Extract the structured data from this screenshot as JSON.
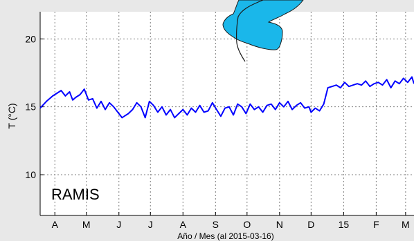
{
  "chart_data": {
    "type": "line",
    "ylabel": "T  (°C)",
    "xlabel": "Año / Mes  (al  2015-03-16)",
    "ylim": [
      7,
      22
    ],
    "y_ticks": [
      10,
      15,
      20
    ],
    "x_ticks": [
      "A",
      "M",
      "J",
      "J",
      "A",
      "S",
      "O",
      "N",
      "D",
      "15",
      "F",
      "M"
    ],
    "x_tick_days": [
      14,
      44,
      75,
      105,
      136,
      167,
      197,
      228,
      258,
      289,
      320,
      348
    ],
    "xlim_days": [
      0,
      356
    ],
    "grid": true,
    "annotation": "RAMIS",
    "series": [
      {
        "days": [
          0,
          6,
          12,
          16,
          20,
          24,
          28,
          31,
          34,
          38,
          42,
          46,
          50,
          54,
          58,
          62,
          66,
          70,
          74,
          78,
          80,
          84,
          88,
          92,
          96,
          100,
          104,
          108,
          112,
          116,
          120,
          124,
          128,
          132,
          136,
          140,
          144,
          148,
          152,
          156,
          160,
          164,
          168,
          172,
          176,
          180,
          184,
          188,
          192,
          196,
          200,
          204,
          208,
          212,
          216,
          220,
          224,
          228,
          232,
          236,
          240,
          244,
          248,
          252,
          256,
          258,
          262,
          266,
          270,
          274,
          278,
          282,
          286,
          290,
          294,
          298,
          302,
          306,
          310,
          314,
          318,
          322,
          326,
          330,
          334,
          338,
          342,
          346,
          350,
          354,
          356
        ],
        "values": [
          14.9,
          15.4,
          15.8,
          16.0,
          16.2,
          15.8,
          16.1,
          15.5,
          15.7,
          15.9,
          16.3,
          15.5,
          15.6,
          14.9,
          15.4,
          14.8,
          15.3,
          15.0,
          14.6,
          14.2,
          14.3,
          14.5,
          14.8,
          15.3,
          15.0,
          14.2,
          15.4,
          15.1,
          14.6,
          15.0,
          14.4,
          14.8,
          14.2,
          14.5,
          14.8,
          14.4,
          14.9,
          14.6,
          15.1,
          14.6,
          14.7,
          15.3,
          14.8,
          14.3,
          14.9,
          15.0,
          14.4,
          15.2,
          15.0,
          14.5,
          15.2,
          14.8,
          15.0,
          14.6,
          15.1,
          15.2,
          14.8,
          15.3,
          15.0,
          15.4,
          14.8,
          15.1,
          15.3,
          14.9,
          15.0,
          14.6,
          14.9,
          14.7,
          15.2,
          16.4,
          16.5,
          16.6,
          16.4,
          16.8,
          16.5,
          16.6,
          16.7,
          16.6,
          16.9,
          16.5,
          16.7,
          16.8,
          16.6,
          17.0,
          16.4,
          16.9,
          16.7,
          17.1,
          16.8,
          17.2,
          16.7
        ]
      }
    ]
  },
  "logo": {
    "fill": "#1ab7ea",
    "stroke": "#1a1a1a"
  },
  "colors": {
    "line": "#0000ff",
    "background": "#e8e8e8",
    "plot_background": "#ffffff",
    "grid": "#7f7f7f"
  }
}
